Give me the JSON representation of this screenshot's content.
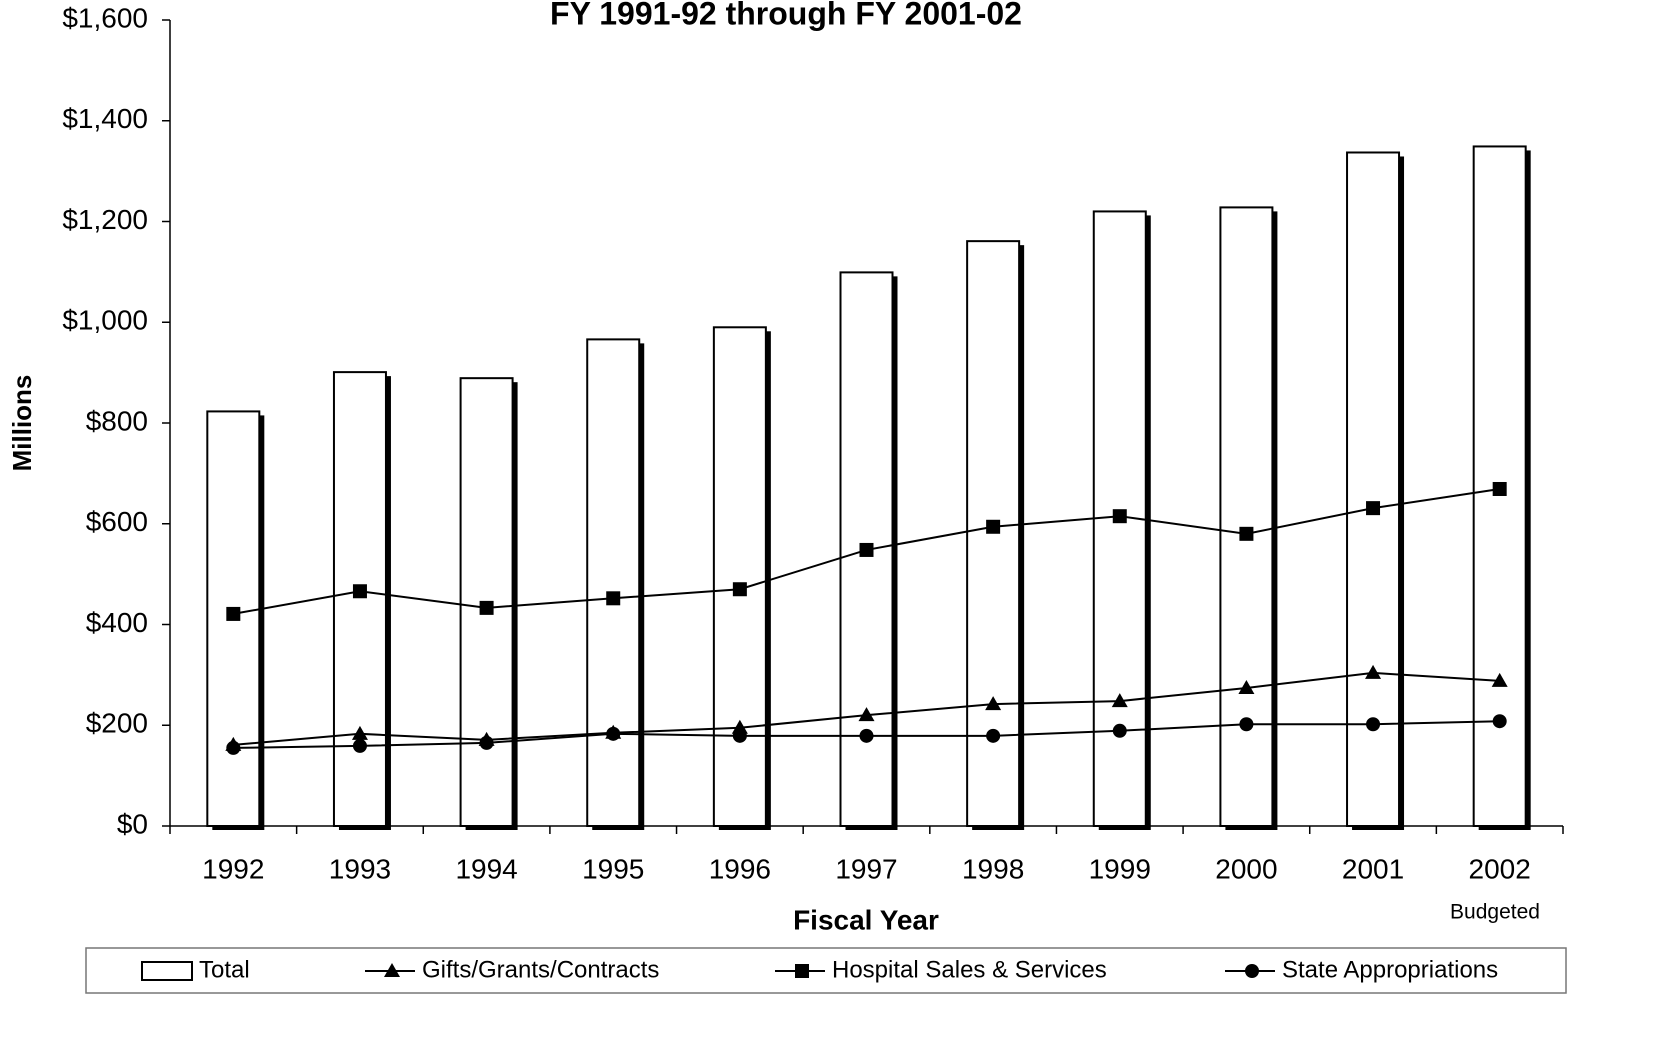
{
  "chart_data": {
    "type": "bar",
    "title": "FY 1991-92 through FY 2001-02",
    "y_label": "Millions",
    "x_label": "Fiscal Year",
    "annotation": "Budgeted",
    "categories": [
      "1992",
      "1993",
      "1994",
      "1995",
      "1996",
      "1997",
      "1998",
      "1999",
      "2000",
      "2001",
      "2002"
    ],
    "series": [
      {
        "name": "Total",
        "type": "bar",
        "color": "#ffffff",
        "values": [
          823,
          901,
          889,
          966,
          990,
          1099,
          1161,
          1220,
          1228,
          1337,
          1349
        ]
      },
      {
        "name": "Gifts/Grants/Contracts",
        "type": "line",
        "marker": "triangle",
        "color": "#000000",
        "values": [
          161,
          183,
          171,
          185,
          195,
          220,
          242,
          248,
          274,
          304,
          288
        ]
      },
      {
        "name": "Hospital Sales & Services",
        "type": "line",
        "marker": "square",
        "color": "#000000",
        "values": [
          421,
          466,
          433,
          452,
          470,
          548,
          594,
          615,
          580,
          631,
          669
        ]
      },
      {
        "name": "State Appropriations",
        "type": "line",
        "marker": "circle",
        "color": "#000000",
        "values": [
          155,
          159,
          165,
          183,
          179,
          179,
          179,
          189,
          202,
          202,
          208
        ]
      }
    ],
    "ylim": [
      0,
      1600
    ],
    "yticks": [
      {
        "value": 0,
        "label": "$0"
      },
      {
        "value": 200,
        "label": "$200"
      },
      {
        "value": 400,
        "label": "$400"
      },
      {
        "value": 600,
        "label": "$600"
      },
      {
        "value": 800,
        "label": "$800"
      },
      {
        "value": 1000,
        "label": "$1,000"
      },
      {
        "value": 1200,
        "label": "$1,200"
      },
      {
        "value": 1400,
        "label": "$1,400"
      },
      {
        "value": 1600,
        "label": "$1,600"
      }
    ],
    "grid": false,
    "legend": "bottom"
  }
}
